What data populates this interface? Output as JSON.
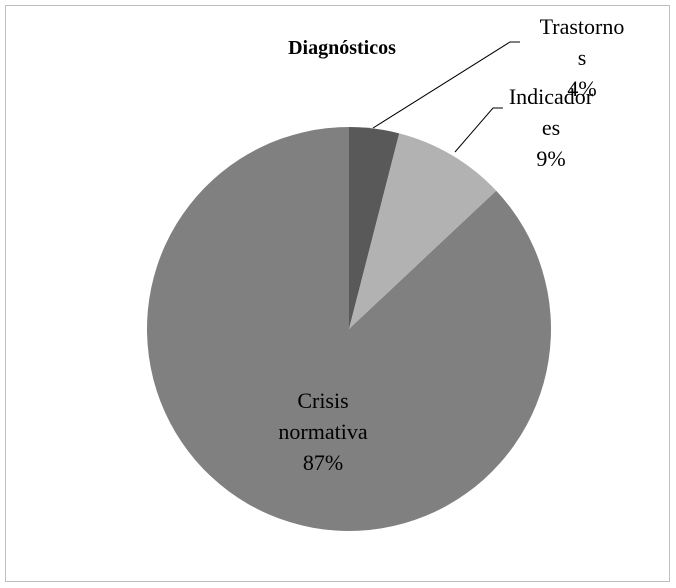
{
  "chart_data": {
    "type": "pie",
    "title": "Diagnósticos",
    "categories": [
      "Trastornos",
      "Indicadores",
      "Crisis normativa"
    ],
    "values": [
      4,
      9,
      87
    ],
    "value_labels": [
      "4%",
      "9%",
      "87%"
    ],
    "colors": [
      "#595959",
      "#b2b2b2",
      "#808080"
    ]
  }
}
